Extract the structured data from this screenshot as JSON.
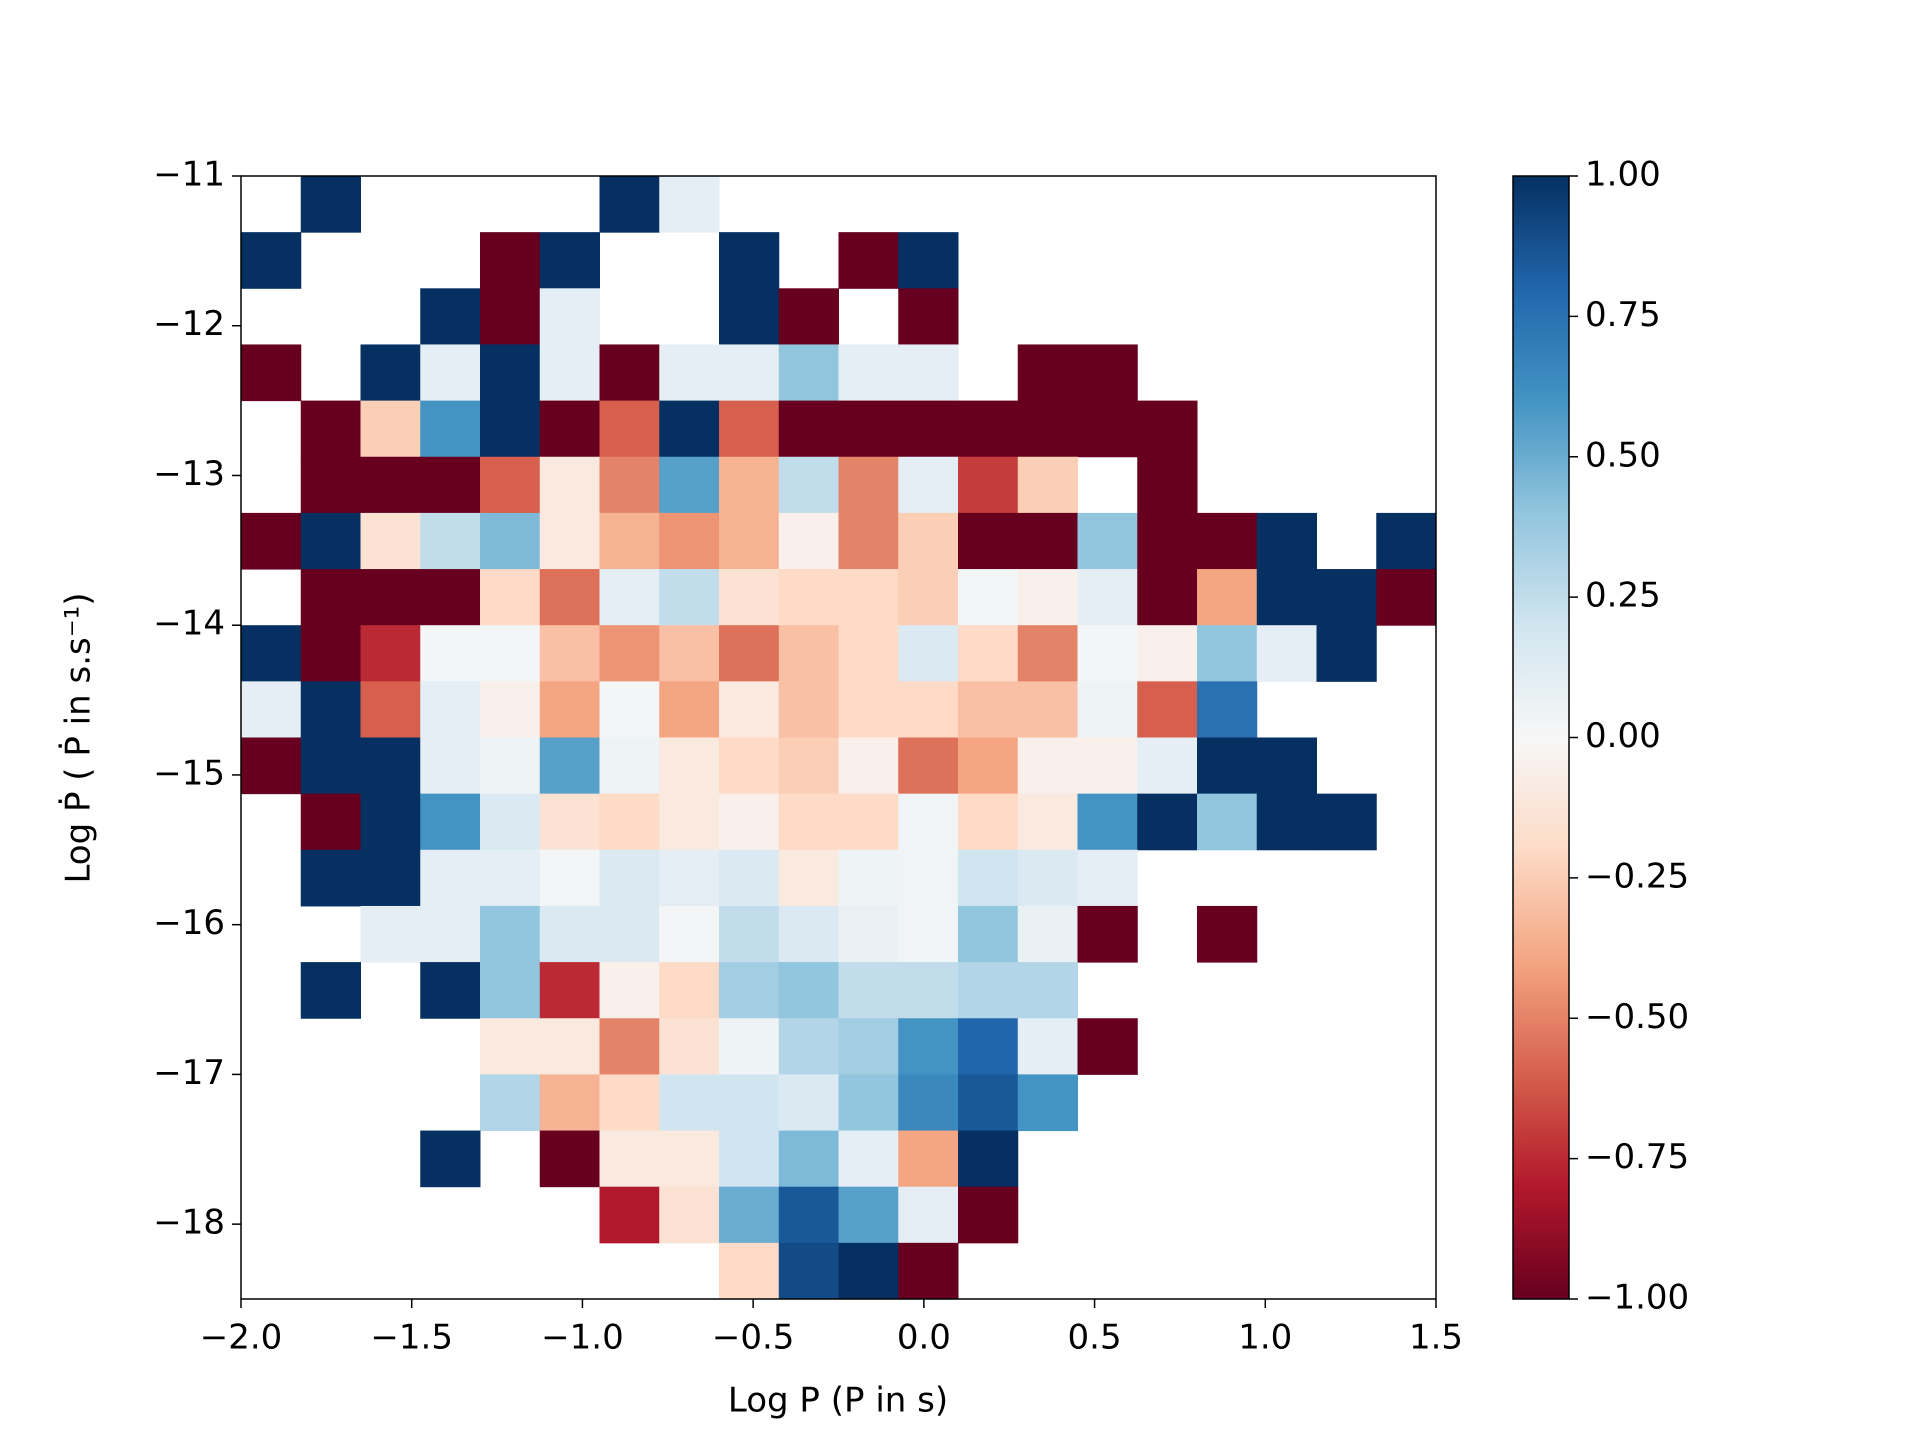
{
  "chart_data": {
    "type": "heatmap",
    "xlabel": "Log P (P in s)",
    "ylabel": "Log Ṗ ( Ṗ in s.s⁻¹)",
    "xlim": [
      -2,
      1.5
    ],
    "ylim": [
      -18.5,
      -11
    ],
    "xticks": [
      {
        "value": -2,
        "label": "−2.0"
      },
      {
        "value": -1.5,
        "label": "−1.5"
      },
      {
        "value": -1,
        "label": "−1.0"
      },
      {
        "value": -0.5,
        "label": "−0.5"
      },
      {
        "value": 0,
        "label": "0.0"
      },
      {
        "value": 0.5,
        "label": "0.5"
      },
      {
        "value": 1,
        "label": "1.0"
      },
      {
        "value": 1.5,
        "label": "1.5"
      }
    ],
    "yticks": [
      {
        "value": -11,
        "label": "−11"
      },
      {
        "value": -12,
        "label": "−12"
      },
      {
        "value": -13,
        "label": "−13"
      },
      {
        "value": -14,
        "label": "−14"
      },
      {
        "value": -15,
        "label": "−15"
      },
      {
        "value": -16,
        "label": "−16"
      },
      {
        "value": -17,
        "label": "−17"
      },
      {
        "value": -18,
        "label": "−18"
      }
    ],
    "xbins": [
      -2,
      -1.825,
      -1.65,
      -1.475,
      -1.3,
      -1.125,
      -0.95,
      -0.775,
      -0.6,
      -0.425,
      -0.25,
      -0.075,
      0.1,
      0.275,
      0.45,
      0.625,
      0.8,
      0.975,
      1.15,
      1.325,
      1.5
    ],
    "ybins": [
      -11,
      -11.375,
      -11.75,
      -12.125,
      -12.5,
      -12.875,
      -13.25,
      -13.625,
      -14,
      -14.375,
      -14.75,
      -15.125,
      -15.5,
      -15.875,
      -16.25,
      -16.625,
      -17,
      -17.375,
      -17.75,
      -18.125,
      -18.5
    ],
    "values": [
      [
        null,
        1,
        null,
        null,
        null,
        null,
        1,
        0.1,
        null,
        null,
        null,
        null,
        null,
        null,
        null,
        null,
        null,
        null,
        null,
        null
      ],
      [
        1,
        null,
        null,
        null,
        -1,
        1,
        null,
        null,
        1,
        null,
        -1,
        1,
        null,
        null,
        null,
        null,
        null,
        null,
        null,
        null
      ],
      [
        null,
        null,
        null,
        1,
        -1,
        0.1,
        null,
        null,
        1,
        -1,
        null,
        -1,
        null,
        null,
        null,
        null,
        null,
        null,
        null,
        null
      ],
      [
        -1,
        null,
        1,
        0.1,
        1,
        0.1,
        -1,
        0.1,
        0.1,
        0.4,
        0.1,
        0.1,
        null,
        -1,
        -1,
        null,
        null,
        null,
        null,
        null
      ],
      [
        null,
        -1,
        -0.25,
        0.6,
        1,
        -1,
        -0.6,
        1,
        -0.6,
        -1,
        -1,
        -1,
        -1,
        -1,
        -1,
        -1,
        null,
        null,
        null,
        null
      ],
      [
        null,
        -1,
        -1,
        -1,
        -0.6,
        -0.1,
        -0.5,
        0.55,
        -0.35,
        0.25,
        -0.5,
        0.1,
        -0.7,
        -0.25,
        null,
        -1,
        null,
        null,
        null,
        null
      ],
      [
        -1,
        1,
        -0.15,
        0.25,
        0.45,
        -0.1,
        -0.35,
        -0.45,
        -0.35,
        -0.05,
        -0.5,
        -0.25,
        -1,
        -1,
        0.4,
        -1,
        -1,
        1,
        null,
        1
      ],
      [
        null,
        -1,
        -1,
        -1,
        -0.2,
        -0.55,
        0.1,
        0.25,
        -0.15,
        -0.2,
        -0.2,
        -0.25,
        0.02,
        -0.05,
        0.1,
        -1,
        -0.4,
        1,
        1,
        -1
      ],
      [
        1,
        -1,
        -0.75,
        0.02,
        0.02,
        -0.3,
        -0.45,
        -0.3,
        -0.55,
        -0.3,
        -0.2,
        0.15,
        -0.2,
        -0.5,
        0.02,
        -0.05,
        0.4,
        0.1,
        1,
        null
      ],
      [
        0.1,
        1,
        -0.6,
        0.1,
        -0.05,
        -0.4,
        0.02,
        -0.4,
        -0.1,
        -0.3,
        -0.2,
        -0.2,
        -0.3,
        -0.3,
        0.05,
        -0.6,
        0.75,
        null,
        null,
        null
      ],
      [
        -1,
        1,
        1,
        0.1,
        0.05,
        0.55,
        0.05,
        -0.1,
        -0.2,
        -0.25,
        -0.05,
        -0.55,
        -0.4,
        -0.05,
        -0.05,
        0.1,
        1,
        1,
        null,
        null
      ],
      [
        null,
        -1,
        1,
        0.6,
        0.15,
        -0.15,
        -0.2,
        -0.1,
        -0.05,
        -0.2,
        -0.2,
        0.03,
        -0.2,
        -0.1,
        0.6,
        1,
        0.4,
        1,
        1,
        null
      ],
      [
        null,
        1,
        1,
        0.1,
        0.1,
        0.02,
        0.15,
        0.1,
        0.15,
        -0.1,
        0.05,
        0.03,
        0.2,
        0.15,
        0.1,
        null,
        null,
        null,
        null,
        null
      ],
      [
        null,
        null,
        0.1,
        0.1,
        0.4,
        0.15,
        0.15,
        0.02,
        0.25,
        0.15,
        0.07,
        0.03,
        0.4,
        0.07,
        -1,
        null,
        -1,
        null,
        null,
        null
      ],
      [
        null,
        1,
        null,
        1,
        0.4,
        -0.75,
        -0.05,
        -0.2,
        0.35,
        0.4,
        0.25,
        0.25,
        0.3,
        0.3,
        null,
        null,
        null,
        null,
        null,
        null
      ],
      [
        null,
        null,
        null,
        null,
        -0.1,
        -0.1,
        -0.5,
        -0.15,
        0.05,
        0.3,
        0.35,
        0.6,
        0.8,
        0.1,
        -1,
        null,
        null,
        null,
        null,
        null
      ],
      [
        null,
        null,
        null,
        null,
        0.3,
        -0.35,
        -0.2,
        0.2,
        0.2,
        0.15,
        0.4,
        0.65,
        0.85,
        0.6,
        null,
        null,
        null,
        null,
        null,
        null
      ],
      [
        null,
        null,
        null,
        1,
        null,
        -1,
        -0.1,
        -0.1,
        0.2,
        0.45,
        0.1,
        -0.4,
        1,
        null,
        null,
        null,
        null,
        null,
        null,
        null
      ],
      [
        null,
        null,
        null,
        null,
        null,
        null,
        -0.8,
        -0.15,
        0.5,
        0.85,
        0.55,
        0.1,
        -1,
        null,
        null,
        null,
        null,
        null,
        null,
        null
      ],
      [
        null,
        null,
        null,
        null,
        null,
        null,
        null,
        null,
        -0.2,
        0.9,
        1,
        -1,
        null,
        null,
        null,
        null,
        null,
        null,
        null,
        null
      ]
    ],
    "colormap": [
      "#67001f",
      "#b2182b",
      "#d6604d",
      "#f4a582",
      "#fddbc7",
      "#f7f7f7",
      "#d1e5f0",
      "#92c5de",
      "#4393c3",
      "#2166ac",
      "#053061"
    ],
    "colorbar": {
      "lim": [
        -1,
        1
      ],
      "ticks": [
        {
          "value": 1,
          "label": "1.00"
        },
        {
          "value": 0.75,
          "label": "0.75"
        },
        {
          "value": 0.5,
          "label": "0.50"
        },
        {
          "value": 0.25,
          "label": "0.25"
        },
        {
          "value": 0,
          "label": "0.00"
        },
        {
          "value": -0.25,
          "label": "−0.25"
        },
        {
          "value": -0.5,
          "label": "−0.50"
        },
        {
          "value": -0.75,
          "label": "−0.75"
        },
        {
          "value": -1,
          "label": "−1.00"
        }
      ]
    }
  }
}
